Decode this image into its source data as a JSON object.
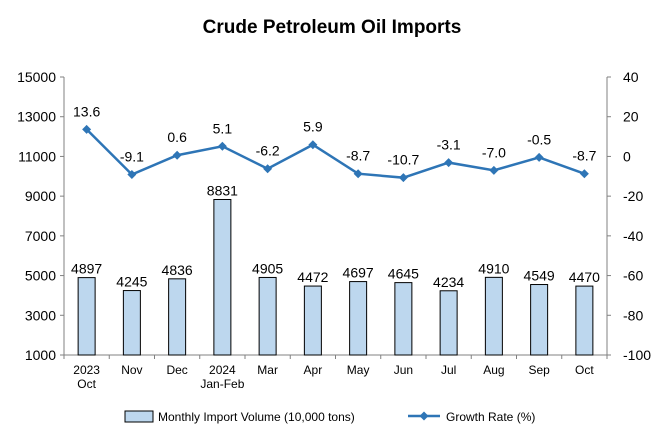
{
  "chart_data": {
    "type": "bar",
    "title": "Crude Petroleum Oil Imports",
    "categories": [
      [
        "2023",
        "Oct"
      ],
      [
        "Nov"
      ],
      [
        "Dec"
      ],
      [
        "2024",
        "Jan-Feb"
      ],
      [
        "Mar"
      ],
      [
        "Apr"
      ],
      [
        "May"
      ],
      [
        "Jun"
      ],
      [
        "Jul"
      ],
      [
        "Aug"
      ],
      [
        "Sep"
      ],
      [
        "Oct"
      ]
    ],
    "series": [
      {
        "name": "Monthly Import Volume (10,000 tons)",
        "type": "bar",
        "axis": "left",
        "color": "#bdd7ee",
        "values": [
          4897,
          4245,
          4836,
          8831,
          4905,
          4472,
          4697,
          4645,
          4234,
          4910,
          4549,
          4470
        ]
      },
      {
        "name": "Growth Rate (%)",
        "type": "line",
        "axis": "right",
        "color": "#2e75b6",
        "values": [
          13.6,
          -9.1,
          0.6,
          5.1,
          -6.2,
          5.9,
          -8.7,
          -10.7,
          -3.1,
          -7.0,
          -0.5,
          -8.7
        ],
        "labels": [
          "13.6",
          "-9.1",
          "0.6",
          "5.1",
          "-6.2",
          "5.9",
          "-8.7",
          "-10.7",
          "-3.1",
          "-7.0",
          "-0.5",
          "-8.7"
        ]
      }
    ],
    "y_left": {
      "min": 1000,
      "max": 15000,
      "step": 2000,
      "ticks": [
        "1000",
        "3000",
        "5000",
        "7000",
        "9000",
        "11000",
        "13000",
        "15000"
      ]
    },
    "y_right": {
      "min": -100,
      "max": 40,
      "step": 20,
      "ticks": [
        "-100",
        "-80",
        "-60",
        "-40",
        "-20",
        "0",
        "20",
        "40"
      ]
    },
    "grid": false,
    "legend": "bottom"
  }
}
